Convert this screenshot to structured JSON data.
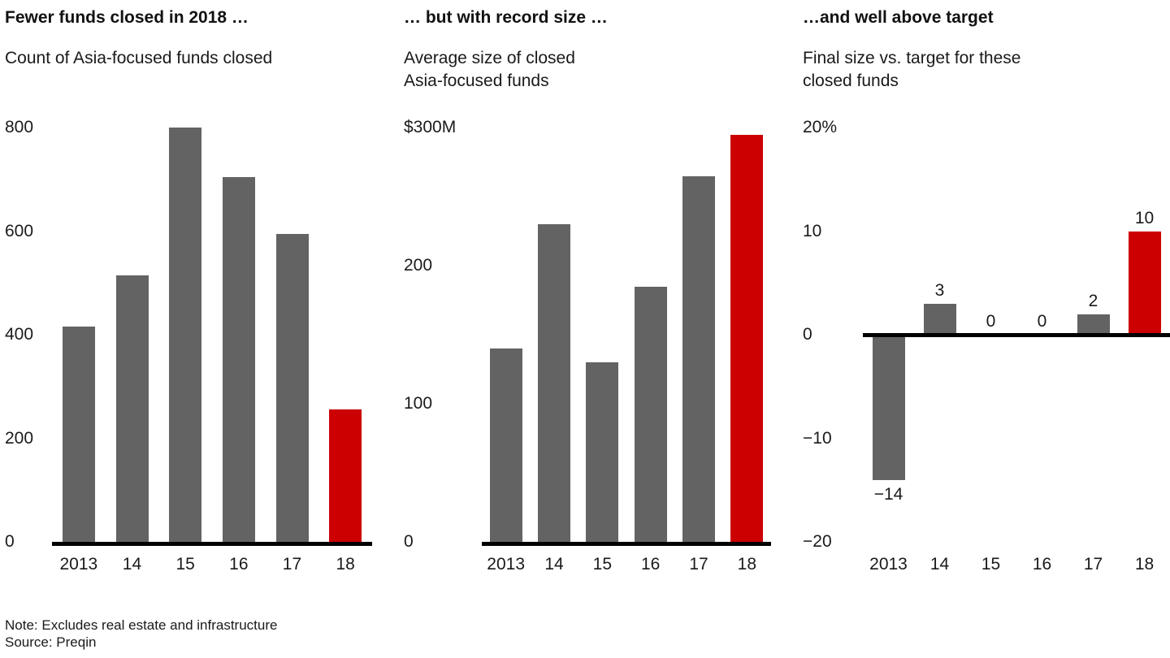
{
  "colors": {
    "bar": "#636363",
    "highlight": "#cc0000",
    "axis": "#000000"
  },
  "footnote": {
    "note": "Note: Excludes real estate and infrastructure",
    "source": "Source: Preqin"
  },
  "chart_data": [
    {
      "type": "bar",
      "title": "Fewer funds closed in 2018 …",
      "subtitle": "Count of Asia-focused funds closed",
      "categories": [
        "2013",
        "14",
        "15",
        "16",
        "17",
        "18"
      ],
      "values": [
        415,
        515,
        800,
        705,
        595,
        255
      ],
      "highlight_index": 5,
      "ylim": [
        0,
        800
      ],
      "yticks": [
        {
          "value": 0,
          "label": "0"
        },
        {
          "value": 200,
          "label": "200"
        },
        {
          "value": 400,
          "label": "400"
        },
        {
          "value": 600,
          "label": "600"
        },
        {
          "value": 800,
          "label": "800"
        }
      ],
      "baseline": true,
      "zero_line": false,
      "bar_labels": null,
      "grid": false,
      "legend": false
    },
    {
      "type": "bar",
      "title": "… but with record size …",
      "subtitle": "Average size of closed\nAsia-focused funds",
      "categories": [
        "2013",
        "14",
        "15",
        "16",
        "17",
        "18"
      ],
      "values": [
        140,
        230,
        130,
        185,
        265,
        295
      ],
      "highlight_index": 5,
      "ylim": [
        0,
        300
      ],
      "yticks": [
        {
          "value": 0,
          "label": "0"
        },
        {
          "value": 100,
          "label": "100"
        },
        {
          "value": 200,
          "label": "200"
        },
        {
          "value": 300,
          "label": "$300M"
        }
      ],
      "baseline": true,
      "zero_line": false,
      "bar_labels": null,
      "grid": false,
      "legend": false
    },
    {
      "type": "bar",
      "title": "…and well above target",
      "subtitle": "Final size vs. target for these\nclosed funds",
      "categories": [
        "2013",
        "14",
        "15",
        "16",
        "17",
        "18"
      ],
      "values": [
        -14,
        3,
        0,
        0,
        2,
        10
      ],
      "highlight_index": 5,
      "ylim": [
        -20,
        20
      ],
      "yticks": [
        {
          "value": -20,
          "label": "−20"
        },
        {
          "value": -10,
          "label": "−10"
        },
        {
          "value": 0,
          "label": "0"
        },
        {
          "value": 10,
          "label": "10"
        },
        {
          "value": 20,
          "label": "20%"
        }
      ],
      "baseline": false,
      "zero_line": true,
      "bar_labels": [
        "−14",
        "3",
        "0",
        "0",
        "2",
        "10"
      ],
      "grid": false,
      "legend": false
    }
  ]
}
